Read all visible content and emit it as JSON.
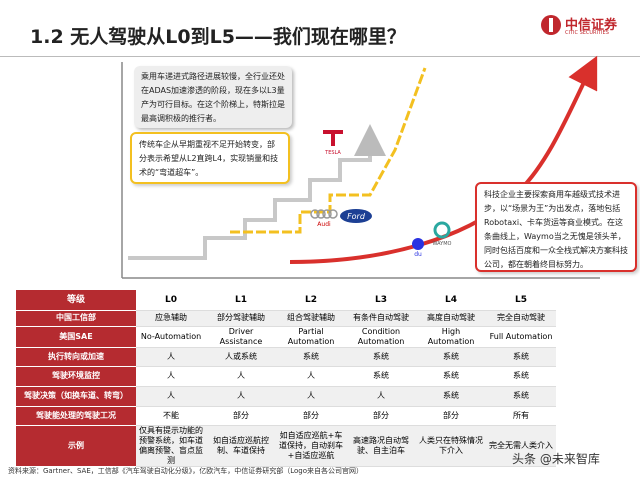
{
  "header": {
    "title": "1.2 无人驾驶从L0到L5——我们现在哪里？",
    "logo_name": "中信证券",
    "logo_en": "CITIC SECURITIES"
  },
  "callouts": [
    "乘用车递进式路径进展较慢，全行业还处在ADAS加速渗透的阶段，现在多以L3量产为可行目标。在这个阶梯上，特斯拉是最高调积极的推行者。",
    "传统车企从早期重视不足开始转变，部分表示希望从L2直跨L4，实现销量和技术的“弯道超车”。",
    "科技企业主要探索商用车越级式技术进步，以“场景为王”为出发点，落地包括Robotaxi、卡车货运等商业模式。在这条曲线上，Waymo当之无愧是领头羊，同时包括百度和一众全栈式解决方案科技公司，都在朝着终目标努力。"
  ],
  "logos": {
    "tesla": "TESLA",
    "audi": "Audi",
    "ford": "Ford",
    "waymo": "WAYMO",
    "baidu": "du"
  },
  "table": {
    "header": [
      "等级",
      "L0",
      "L1",
      "L2",
      "L3",
      "L4",
      "L5"
    ],
    "rows": [
      [
        "中国工信部",
        "应急辅助",
        "部分驾驶辅助",
        "组合驾驶辅助",
        "有条件自动驾驶",
        "高度自动驾驶",
        "完全自动驾驶"
      ],
      [
        "美国SAE",
        "No-Automation",
        "Driver Assistance",
        "Partial Automation",
        "Condition Automation",
        "High Automation",
        "Full Automation"
      ],
      [
        "执行转向或加速",
        "人",
        "人或系统",
        "系统",
        "系统",
        "系统",
        "系统"
      ],
      [
        "驾驶环境监控",
        "人",
        "人",
        "人",
        "系统",
        "系统",
        "系统"
      ],
      [
        "驾驶决策（如换车道、转弯）",
        "人",
        "人",
        "人",
        "人",
        "系统",
        "系统"
      ],
      [
        "驾驶能处理的驾驶工况",
        "不能",
        "部分",
        "部分",
        "部分",
        "部分",
        "所有"
      ],
      [
        "示例",
        "仅具有提示功能的预警系统，如车道偏离预警、盲点监测",
        "如自适应巡航控制、车道保持",
        "如自适应巡航+车道保持，自动刹车+自适应巡航",
        "高速路况自动驾驶、自主泊车",
        "人类只在特殊情况下介入",
        "完全无需人类介入"
      ]
    ]
  },
  "footer": {
    "source": "资料来源：Gartner、SAE，工信部《汽车驾驶自动化分级》，亿欧汽车，中信证券研究部（Logo来自各公司官网）",
    "watermark": "头条 @未来智库"
  }
}
